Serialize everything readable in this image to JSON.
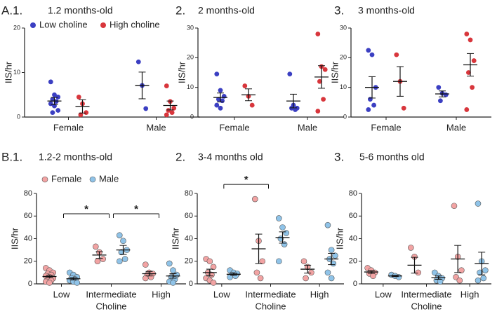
{
  "chart_data": [
    {
      "type": "dot",
      "panel": "A.1.",
      "title": "1.2 months-old",
      "ylabel": "IIS/hr",
      "categories": [
        "Female",
        "Male"
      ],
      "ylim": [
        0,
        20
      ],
      "yticks": [
        0,
        10,
        20
      ],
      "legend": "top-left",
      "series": [
        {
          "name": "Low choline",
          "color": "#3b3fc2",
          "values": [
            [
              7.9,
              5,
              4.5,
              4,
              3.5,
              3,
              2.5,
              1.5,
              1
            ],
            [
              12.4,
              7.1,
              1.9
            ]
          ],
          "mean": [
            3.6,
            7.1
          ],
          "sem": [
            0.8,
            3
          ]
        },
        {
          "name": "High choline",
          "color": "#d8363c",
          "values": [
            [
              4.5,
              3,
              1,
              0.5
            ],
            [
              7,
              3.5,
              2,
              1.5,
              1,
              0.5
            ]
          ],
          "mean": [
            2.4,
            2.6
          ],
          "sem": [
            1.5,
            1
          ]
        }
      ]
    },
    {
      "type": "dot",
      "panel": "2.",
      "title": "2 months-old",
      "ylabel": "IIS/hr",
      "categories": [
        "Female",
        "Male"
      ],
      "ylim": [
        0,
        30
      ],
      "yticks": [
        0,
        10,
        20,
        30
      ],
      "series": [
        {
          "name": "Low choline",
          "color": "#3b3fc2",
          "values": [
            [
              14.5,
              9,
              7,
              6,
              5.5,
              4,
              3
            ],
            [
              14.5,
              4,
              3,
              3,
              2.5
            ]
          ],
          "mean": [
            6.6,
            5.4
          ],
          "sem": [
            1.5,
            2.3
          ]
        },
        {
          "name": "High choline",
          "color": "#d8363c",
          "values": [
            [
              10.5,
              7,
              4
            ],
            [
              28,
              17,
              16,
              12,
              6,
              2
            ]
          ],
          "mean": [
            7.5,
            13.5
          ],
          "sem": [
            2,
            3.8
          ]
        }
      ]
    },
    {
      "type": "dot",
      "panel": "3.",
      "title": "3 months-old",
      "ylabel": "IIS/hr",
      "categories": [
        "Female",
        "Male"
      ],
      "ylim": [
        0,
        30
      ],
      "yticks": [
        0,
        10,
        20,
        30
      ],
      "series": [
        {
          "name": "Low choline",
          "color": "#3b3fc2",
          "values": [
            [
              22.5,
              21,
              10,
              6,
              4,
              2.5
            ],
            [
              10,
              8,
              7.5,
              5.5
            ]
          ],
          "mean": [
            10,
            7.8
          ],
          "sem": [
            3.6,
            1
          ]
        },
        {
          "name": "High choline",
          "color": "#d8363c",
          "values": [
            [
              21,
              12,
              3
            ],
            [
              28,
              26,
              19,
              15,
              10,
              2.5
            ]
          ],
          "mean": [
            12,
            17.6
          ],
          "sem": [
            5,
            3.8
          ]
        }
      ]
    },
    {
      "type": "dot",
      "panel": "B.1.",
      "title": "1.2-2 months-old",
      "ylabel": "IIS/hr",
      "xlabel": "Choline",
      "categories": [
        "Low",
        "Intermediate",
        "High"
      ],
      "ylim": [
        0,
        80
      ],
      "yticks": [
        0,
        20,
        40,
        60,
        80
      ],
      "legend": "top-left",
      "significance": [
        {
          "from": 0,
          "to": 1,
          "y": 62,
          "label": "*"
        },
        {
          "from": 1,
          "to": 2,
          "y": 62,
          "label": "*"
        }
      ],
      "series": [
        {
          "name": "Female",
          "color": "#f2a3a3",
          "values": [
            [
              14,
              12,
              10,
              9,
              8,
              7,
              6,
              5,
              4,
              3,
              2,
              1
            ],
            [
              33,
              28,
              22,
              20
            ],
            [
              17,
              10,
              9,
              8,
              6,
              5
            ]
          ],
          "mean": [
            6.5,
            25.5,
            9
          ],
          "sem": [
            1,
            3,
            2
          ]
        },
        {
          "name": "Male",
          "color": "#8fc3e8",
          "values": [
            [
              10,
              8,
              6,
              5,
              4,
              3,
              2,
              1
            ],
            [
              43,
              38,
              30,
              28,
              22,
              20
            ],
            [
              18,
              12,
              8,
              6,
              4,
              2,
              1
            ]
          ],
          "mean": [
            4.5,
            30,
            7
          ],
          "sem": [
            1,
            4,
            2
          ]
        }
      ]
    },
    {
      "type": "dot",
      "panel": "2.",
      "title": "3-4 months old",
      "ylabel": "IIS/hr",
      "xlabel": "Choline",
      "categories": [
        "Low",
        "Intermediate",
        "High"
      ],
      "ylim": [
        0,
        80
      ],
      "yticks": [
        0,
        20,
        40,
        60,
        80
      ],
      "significance": [
        {
          "from": 0,
          "to": 1,
          "y": 88,
          "label": "*"
        }
      ],
      "series": [
        {
          "name": "Female",
          "color": "#f2a3a3",
          "values": [
            [
              22,
              20,
              15,
              10,
              8,
              5,
              3,
              1
            ],
            [
              75,
              38,
              20,
              10,
              5
            ],
            [
              20,
              15,
              10,
              5
            ]
          ],
          "mean": [
            10,
            31,
            13
          ],
          "sem": [
            3,
            13,
            3.5
          ]
        },
        {
          "name": "Male",
          "color": "#8fc3e8",
          "values": [
            [
              12,
              10,
              9,
              8,
              7,
              6
            ],
            [
              58,
              50,
              45,
              40,
              35,
              20
            ],
            [
              52,
              30,
              25,
              22,
              18,
              10,
              5
            ]
          ],
          "mean": [
            8.5,
            41,
            22
          ],
          "sem": [
            1,
            5,
            5
          ]
        }
      ]
    },
    {
      "type": "dot",
      "panel": "3.",
      "title": "5-6 months old",
      "ylabel": "IIS/hr",
      "xlabel": "Choline",
      "categories": [
        "Low",
        "Intermediate",
        "High"
      ],
      "ylim": [
        0,
        80
      ],
      "yticks": [
        0,
        20,
        40,
        60,
        80
      ],
      "series": [
        {
          "name": "Female",
          "color": "#f2a3a3",
          "values": [
            [
              14,
              12,
              10,
              9,
              7
            ],
            [
              32,
              24,
              10
            ],
            [
              69,
              24,
              12,
              6,
              3
            ]
          ],
          "mean": [
            10.5,
            16.5,
            22
          ],
          "sem": [
            1.2,
            7,
            12
          ]
        },
        {
          "name": "Male",
          "color": "#8fc3e8",
          "values": [
            [
              8,
              7,
              6
            ],
            [
              10,
              7,
              5,
              3,
              2
            ],
            [
              71,
              20,
              12,
              10,
              5,
              3
            ]
          ],
          "mean": [
            7,
            5.5,
            18
          ],
          "sem": [
            0.6,
            1.5,
            10
          ]
        }
      ]
    }
  ]
}
